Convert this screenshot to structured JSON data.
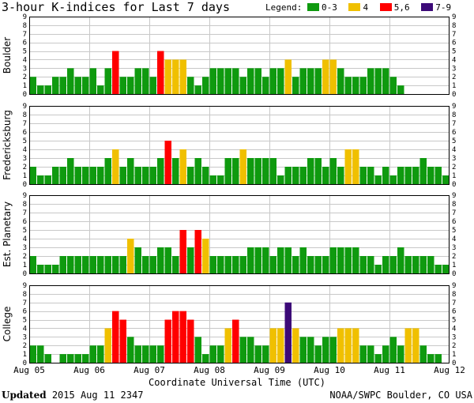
{
  "title": "3-hour K-indices for Last 7 days",
  "legend": {
    "label": "Legend:",
    "entries": [
      {
        "label": "0-3",
        "color": "#0f9a0f"
      },
      {
        "label": "4",
        "color": "#f0c000"
      },
      {
        "label": "5,6",
        "color": "#ff0000"
      },
      {
        "label": "7-9",
        "color": "#3c0a78"
      }
    ]
  },
  "xlabel": "Coordinate Universal Time (UTC)",
  "footer": {
    "updated_label": "Updated",
    "updated_value": "2015 Aug 11 2347",
    "credit": "NOAA/SWPC Boulder, CO USA"
  },
  "chart_data": {
    "type": "bar",
    "title": "3-hour K-indices for Last 7 days",
    "xlabel": "Coordinate Universal Time (UTC)",
    "x_ticks": [
      "Aug 05",
      "Aug 06",
      "Aug 07",
      "Aug 08",
      "Aug 09",
      "Aug 10",
      "Aug 11",
      "Aug 12"
    ],
    "ylim": [
      0,
      9
    ],
    "y_ticks": [
      0,
      1,
      2,
      3,
      4,
      5,
      6,
      7,
      8,
      9
    ],
    "grid": true,
    "bins_per_day": 8,
    "series": [
      {
        "name": "Boulder",
        "values": [
          2,
          1,
          1,
          2,
          2,
          3,
          2,
          2,
          3,
          1,
          3,
          5,
          2,
          2,
          3,
          3,
          2,
          5,
          4,
          4,
          4,
          2,
          1,
          2,
          3,
          3,
          3,
          3,
          2,
          3,
          3,
          2,
          3,
          3,
          4,
          2,
          3,
          3,
          3,
          4,
          4,
          3,
          2,
          2,
          2,
          3,
          3,
          3,
          2,
          1,
          0
        ]
      },
      {
        "name": "Fredericksburg",
        "values": [
          2,
          1,
          1,
          2,
          2,
          3,
          2,
          2,
          2,
          2,
          3,
          4,
          2,
          3,
          2,
          2,
          2,
          3,
          5,
          3,
          4,
          2,
          3,
          2,
          1,
          1,
          3,
          3,
          4,
          3,
          3,
          3,
          3,
          1,
          2,
          2,
          2,
          3,
          3,
          2,
          3,
          2,
          4,
          4,
          2,
          2,
          1,
          2,
          1,
          2,
          2,
          2,
          3,
          2,
          2,
          1,
          0
        ]
      },
      {
        "name": "Est. Planetary",
        "values": [
          2,
          1,
          1,
          1,
          2,
          2,
          2,
          2,
          2,
          2,
          2,
          2,
          2,
          4,
          3,
          2,
          2,
          3,
          3,
          2,
          5,
          3,
          5,
          4,
          2,
          2,
          2,
          2,
          2,
          3,
          3,
          3,
          2,
          3,
          3,
          2,
          3,
          2,
          2,
          2,
          3,
          3,
          3,
          3,
          2,
          2,
          1,
          2,
          2,
          3,
          2,
          2,
          2,
          2,
          1,
          1,
          0
        ]
      },
      {
        "name": "College",
        "values": [
          2,
          2,
          1,
          0,
          1,
          1,
          1,
          1,
          2,
          2,
          4,
          6,
          5,
          3,
          2,
          2,
          2,
          2,
          5,
          6,
          6,
          5,
          3,
          1,
          2,
          2,
          4,
          5,
          3,
          3,
          2,
          2,
          4,
          4,
          7,
          4,
          3,
          3,
          2,
          3,
          3,
          4,
          4,
          4,
          2,
          2,
          1,
          2,
          3,
          2,
          4,
          4,
          2,
          1,
          1,
          0
        ]
      }
    ]
  }
}
